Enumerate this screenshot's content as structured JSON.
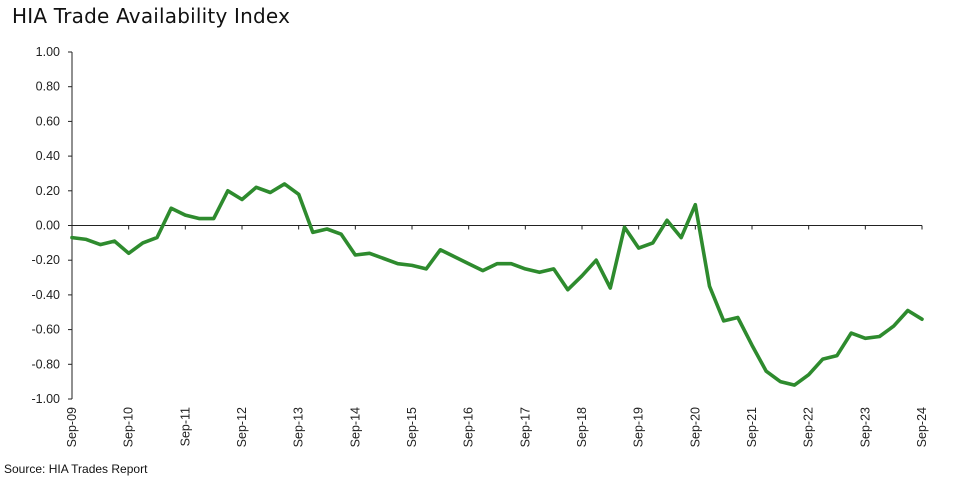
{
  "chart_data": {
    "type": "line",
    "title": "HIA Trade Availability Index",
    "source": "Source: HIA Trades Report",
    "xlabel": "",
    "ylabel": "",
    "ylim": [
      -1.0,
      1.0
    ],
    "yticks": [
      "1.00",
      "0.80",
      "0.60",
      "0.40",
      "0.20",
      "0.00",
      "-0.20",
      "-0.40",
      "-0.60",
      "-0.80",
      "-1.00"
    ],
    "ytick_values": [
      1.0,
      0.8,
      0.6,
      0.4,
      0.2,
      0.0,
      -0.2,
      -0.4,
      -0.6,
      -0.8,
      -1.0
    ],
    "xticks": [
      "Sep-09",
      "Sep-10",
      "Sep-11",
      "Sep-12",
      "Sep-13",
      "Sep-14",
      "Sep-15",
      "Sep-16",
      "Sep-17",
      "Sep-18",
      "Sep-19",
      "Sep-20",
      "Sep-21",
      "Sep-22",
      "Sep-23",
      "Sep-24"
    ],
    "line_color": "#2e8b2e",
    "series": [
      {
        "name": "HIA Trade Availability Index",
        "values": [
          -0.07,
          -0.08,
          -0.11,
          -0.09,
          -0.16,
          -0.1,
          -0.07,
          0.1,
          0.06,
          0.04,
          0.04,
          0.2,
          0.15,
          0.22,
          0.19,
          0.24,
          0.18,
          -0.04,
          -0.02,
          -0.05,
          -0.17,
          -0.16,
          -0.19,
          -0.22,
          -0.23,
          -0.25,
          -0.14,
          -0.18,
          -0.22,
          -0.26,
          -0.22,
          -0.22,
          -0.25,
          -0.27,
          -0.25,
          -0.37,
          -0.29,
          -0.2,
          -0.36,
          -0.01,
          -0.13,
          -0.1,
          0.03,
          -0.07,
          0.12,
          -0.35,
          -0.55,
          -0.53,
          -0.69,
          -0.84,
          -0.9,
          -0.92,
          -0.86,
          -0.77,
          -0.75,
          -0.62,
          -0.65,
          -0.64,
          -0.58,
          -0.49,
          -0.54
        ]
      }
    ]
  }
}
